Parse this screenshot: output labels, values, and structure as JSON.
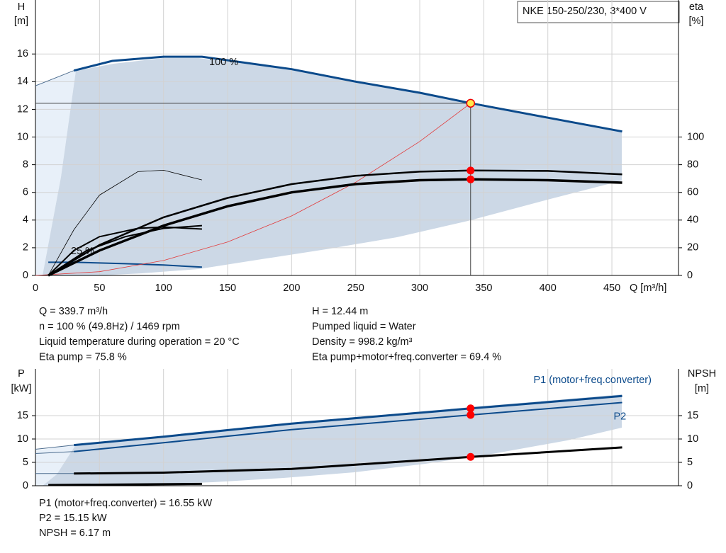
{
  "title": "NKE 150-250/230, 3*400 V",
  "chart_data": [
    {
      "type": "line",
      "ylabel": [
        "H",
        "[m]"
      ],
      "y2label": [
        "eta",
        "[%]"
      ],
      "xlabel": "Q [m³/h]",
      "xlim": [
        0,
        502
      ],
      "ylim": [
        0,
        19.9
      ],
      "y2lim": [
        0,
        199
      ],
      "xticks": [
        0,
        50,
        100,
        150,
        200,
        250,
        300,
        350,
        400,
        450
      ],
      "yticks": [
        0,
        2,
        4,
        6,
        8,
        10,
        12,
        14,
        16
      ],
      "y2ticks": [
        0,
        20,
        40,
        60,
        80,
        100
      ],
      "show_xtick_labels": true,
      "grid": true,
      "annotations": [
        "100 %",
        "25 %"
      ],
      "series": [
        {
          "color": "#4d6d8f",
          "width": 1,
          "x": [
            0,
            30
          ],
          "values": [
            13.7,
            14.8
          ]
        },
        {
          "color": "#0b4a8b",
          "width": 3,
          "x": [
            30,
            60,
            100,
            130,
            200,
            250,
            300,
            340,
            400,
            458
          ],
          "values": [
            14.8,
            15.5,
            15.8,
            15.8,
            14.9,
            14.0,
            13.2,
            12.44,
            11.4,
            10.4
          ]
        },
        {
          "color": "#0b4a8b",
          "width": 2,
          "x": [
            10,
            30,
            70,
            100,
            130
          ],
          "values": [
            0.95,
            0.95,
            0.85,
            0.75,
            0.6
          ]
        },
        {
          "color": "#e23b3b",
          "width": 0.8,
          "x": [
            0,
            50,
            100,
            150,
            200,
            250,
            300,
            339.7
          ],
          "values": [
            0,
            0.27,
            1.08,
            2.42,
            4.3,
            6.73,
            9.68,
            12.44
          ]
        },
        {
          "color": "#000000",
          "width": 2.5,
          "axis": "y2",
          "x": [
            10,
            50,
            100,
            150,
            200,
            250,
            300,
            340,
            400,
            458
          ],
          "values": [
            0,
            22,
            42,
            56,
            66,
            72,
            75,
            75.8,
            75.5,
            73
          ]
        },
        {
          "color": "#000000",
          "width": 3.5,
          "axis": "y2",
          "x": [
            10,
            50,
            100,
            150,
            200,
            250,
            300,
            340,
            400,
            458
          ],
          "values": [
            0,
            18,
            36,
            50,
            60,
            66,
            68.8,
            69.4,
            68.8,
            67
          ]
        },
        {
          "color": "#000000",
          "width": 0.8,
          "axis": "y2",
          "x": [
            10,
            30,
            50,
            80,
            100,
            130
          ],
          "values": [
            0,
            33,
            58,
            75,
            76,
            69
          ]
        },
        {
          "color": "#000000",
          "width": 2,
          "axis": "y2",
          "x": [
            10,
            30,
            50,
            80,
            100,
            130
          ],
          "values": [
            0,
            18,
            28,
            34,
            35,
            33.5
          ]
        },
        {
          "color": "#000000",
          "width": 2,
          "axis": "y2",
          "x": [
            10,
            40,
            70,
            100,
            130
          ],
          "values": [
            0,
            18,
            28,
            34,
            36
          ]
        }
      ],
      "duty_point": {
        "x": 339.7,
        "y": 12.44,
        "eta": [
          75.8,
          69.4
        ]
      }
    },
    {
      "type": "line",
      "ylabel": [
        "P",
        "[kW]"
      ],
      "y2label": [
        "NPSH",
        "[m]"
      ],
      "xlim": [
        0,
        502
      ],
      "ylim": [
        0,
        25
      ],
      "y2lim": [
        0,
        25
      ],
      "xticks": [
        0,
        50,
        100,
        150,
        200,
        250,
        300,
        350,
        400,
        450
      ],
      "yticks": [
        0,
        5,
        10,
        15
      ],
      "y2ticks": [
        0,
        5,
        10,
        15
      ],
      "show_xtick_labels": false,
      "grid": true,
      "series": [
        {
          "color": "#4d6d8f",
          "width": 1,
          "x": [
            0,
            30
          ],
          "values": [
            7.8,
            8.7
          ]
        },
        {
          "name": "P1 (motor+freq.converter)",
          "color": "#0b4a8b",
          "width": 3,
          "x": [
            30,
            100,
            200,
            340,
            458
          ],
          "values": [
            8.7,
            10.5,
            13.3,
            16.55,
            19.2
          ]
        },
        {
          "color": "#4d6d8f",
          "width": 1,
          "x": [
            0,
            30
          ],
          "values": [
            6.9,
            7.3
          ]
        },
        {
          "name": "P2",
          "color": "#0b4a8b",
          "width": 2,
          "x": [
            30,
            100,
            200,
            340,
            458
          ],
          "values": [
            7.3,
            9.2,
            12.0,
            15.15,
            17.8
          ]
        },
        {
          "color": "#4d6d8f",
          "width": 1,
          "axis": "y2",
          "x": [
            0,
            30
          ],
          "values": [
            2.6,
            2.6
          ]
        },
        {
          "color": "#000000",
          "width": 3,
          "axis": "y2",
          "x": [
            30,
            100,
            200,
            250,
            340,
            458
          ],
          "values": [
            2.6,
            2.8,
            3.6,
            4.5,
            6.17,
            8.2
          ]
        },
        {
          "color": "#000000",
          "width": 3,
          "x": [
            10,
            130
          ],
          "values": [
            0.15,
            0.4
          ]
        }
      ],
      "duty_point": {
        "x": 339.7,
        "values": [
          16.55,
          15.15
        ],
        "y2values": [
          6.17
        ]
      }
    }
  ],
  "duty_info": {
    "left": [
      "Q = 339.7 m³/h",
      "n = 100 % (49.8Hz) / 1469 rpm",
      "Liquid temperature during operation = 20 °C",
      "Eta pump = 75.8 %"
    ],
    "right": [
      "H = 12.44 m",
      "Pumped liquid = Water",
      "Density = 998.2 kg/m³",
      "Eta pump+motor+freq.converter = 69.4 %"
    ]
  },
  "power_info": [
    "P1 (motor+freq.converter) = 16.55 kW",
    "P2 = 15.15 kW",
    "NPSH = 6.17 m"
  ]
}
